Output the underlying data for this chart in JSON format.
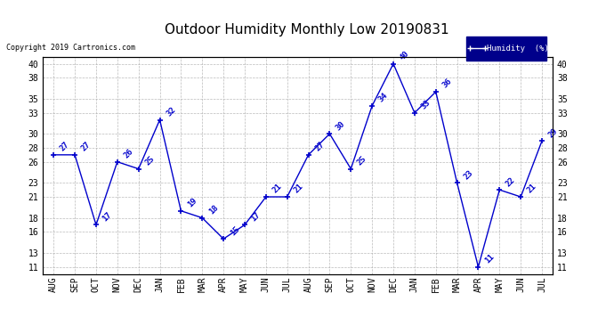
{
  "title": "Outdoor Humidity Monthly Low 20190831",
  "copyright": "Copyright 2019 Cartronics.com",
  "legend_label": "Humidity  (%)",
  "categories": [
    "AUG",
    "SEP",
    "OCT",
    "NOV",
    "DEC",
    "JAN",
    "FEB",
    "MAR",
    "APR",
    "MAY",
    "JUN",
    "JUL",
    "AUG",
    "SEP",
    "OCT",
    "NOV",
    "DEC",
    "JAN",
    "FEB",
    "MAR",
    "APR",
    "MAY",
    "JUN",
    "JUL"
  ],
  "values": [
    27,
    27,
    17,
    26,
    25,
    32,
    19,
    18,
    15,
    17,
    21,
    21,
    27,
    30,
    25,
    34,
    40,
    33,
    36,
    23,
    11,
    22,
    21,
    29
  ],
  "line_color": "#0000cc",
  "marker_color": "#0000cc",
  "background_color": "#ffffff",
  "plot_bg_color": "#ffffff",
  "grid_color": "#aaaaaa",
  "title_fontsize": 11,
  "tick_fontsize": 7,
  "annotation_fontsize": 6.5,
  "ylim": [
    10,
    41
  ],
  "yticks": [
    11,
    13,
    16,
    18,
    21,
    23,
    26,
    28,
    30,
    33,
    35,
    38,
    40
  ],
  "legend_bg": "#00008B",
  "legend_text_color": "#ffffff",
  "border_color": "#000000"
}
